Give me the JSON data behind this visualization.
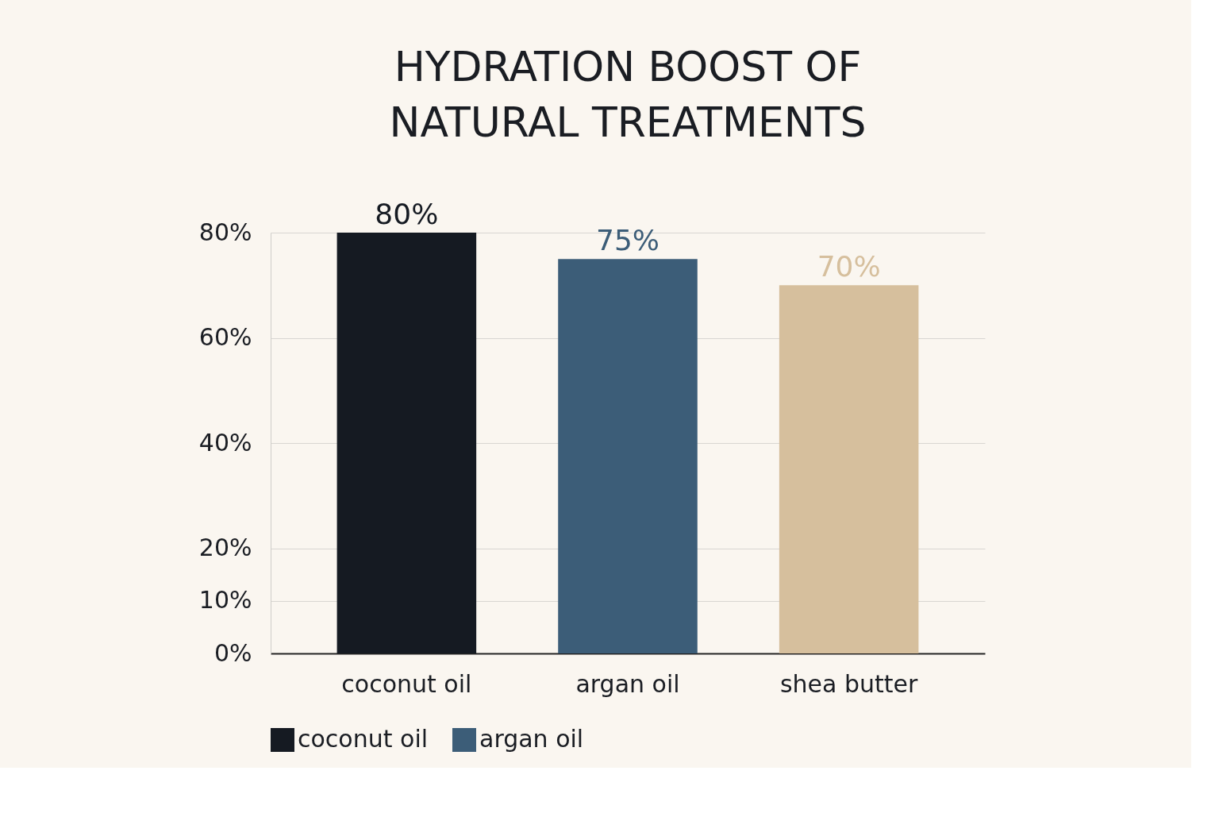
{
  "chart_data": {
    "type": "bar",
    "title": "HYDRATION BOOST OF\nNATURAL TREATMENTS",
    "categories": [
      "coconut oil",
      "argan oil",
      "shea butter"
    ],
    "series": [
      {
        "name": "coconut oil",
        "color": "#151a22",
        "values": [
          80,
          null,
          null
        ],
        "value_labels": [
          "80%",
          null,
          null
        ]
      },
      {
        "name": "argan oil",
        "color": "#3c5d78",
        "values": [
          null,
          75,
          null
        ],
        "value_labels": [
          null,
          "75%",
          null
        ]
      },
      {
        "color": "#d6bf9d",
        "values": [
          null,
          null,
          70
        ],
        "value_labels": [
          null,
          null,
          "70%"
        ]
      }
    ],
    "ylim": [
      0,
      80
    ],
    "yticks": [
      {
        "value": 0,
        "label": "0%"
      },
      {
        "value": 10,
        "label": "10%"
      },
      {
        "value": 20,
        "label": "20%"
      },
      {
        "value": 40,
        "label": "40%"
      },
      {
        "value": 60,
        "label": "60%"
      },
      {
        "value": 80,
        "label": "80%"
      }
    ],
    "grid": "y",
    "legend": "bottom"
  }
}
